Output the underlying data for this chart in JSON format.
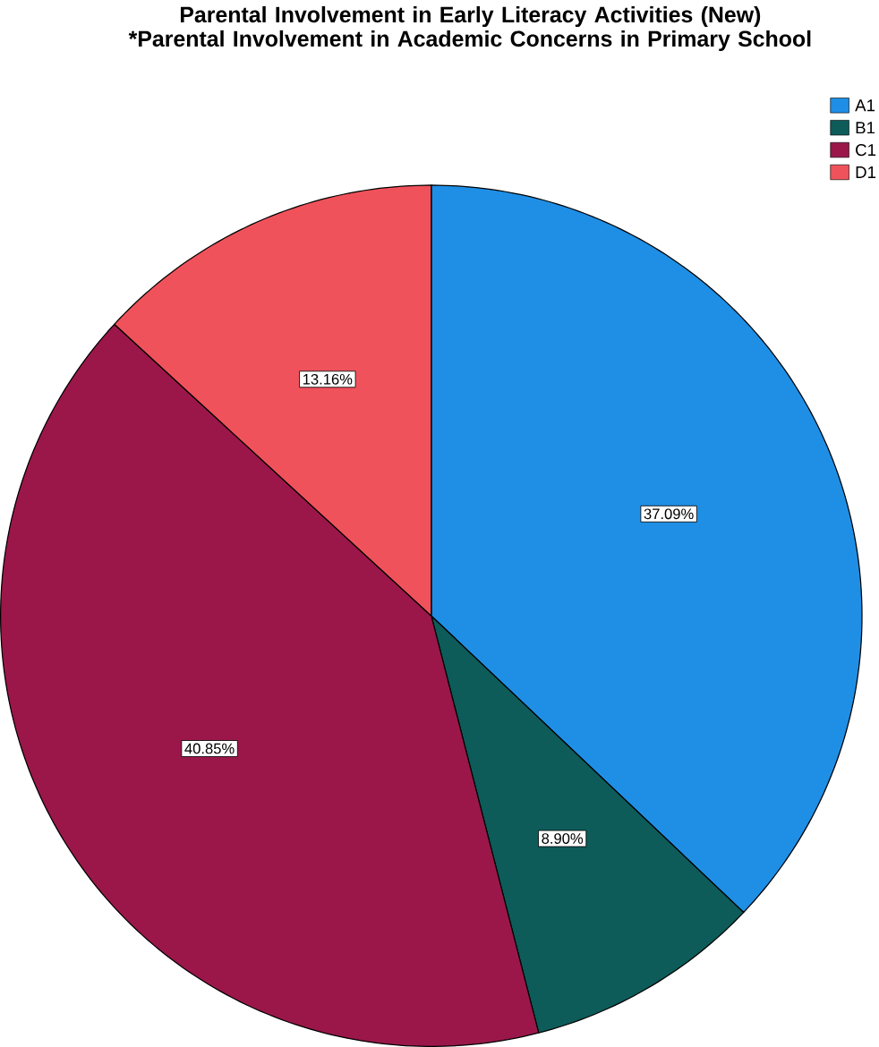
{
  "chart_data": {
    "type": "pie",
    "title": "Parental Involvement in Early Literacy Activities (New) *Parental Involvement in Academic Concerns in Primary School",
    "categories": [
      "A1",
      "B1",
      "C1",
      "D1"
    ],
    "values": [
      37.09,
      8.9,
      40.85,
      13.16
    ],
    "colors": [
      "#1f8fe6",
      "#0d5c5a",
      "#9b174a",
      "#f0525b"
    ],
    "value_labels": [
      "37.09%",
      "8.90%",
      "40.85%",
      "13.16%"
    ],
    "legend": "top right"
  }
}
